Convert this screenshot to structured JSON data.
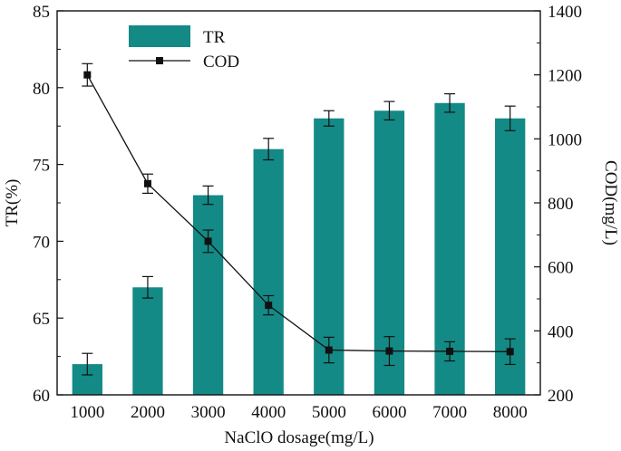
{
  "chart_data": {
    "type": "bar+line",
    "categories": [
      "1000",
      "2000",
      "3000",
      "4000",
      "5000",
      "6000",
      "7000",
      "8000"
    ],
    "xlabel": "NaClO dosage(mg/L)",
    "ylabel_left": "TR(%)",
    "ylabel_right": "COD(mg/L)",
    "ylim_left": [
      60,
      85
    ],
    "yticks_left": [
      60,
      65,
      70,
      75,
      80,
      85
    ],
    "ylim_right": [
      200,
      1400
    ],
    "yticks_right": [
      200,
      400,
      600,
      800,
      1000,
      1200,
      1400
    ],
    "legend_position": "top-left",
    "series": [
      {
        "name": "TR",
        "type": "bar",
        "axis": "left",
        "color": "#138a85",
        "values": [
          62,
          67,
          73,
          76,
          78,
          78.5,
          79,
          78
        ],
        "errors": [
          0.7,
          0.7,
          0.6,
          0.7,
          0.5,
          0.6,
          0.6,
          0.8
        ]
      },
      {
        "name": "COD",
        "type": "line",
        "axis": "right",
        "color": "#111111",
        "values": [
          1200,
          860,
          680,
          480,
          340,
          337,
          336,
          335
        ],
        "errors": [
          35,
          30,
          35,
          30,
          40,
          45,
          30,
          40
        ]
      }
    ]
  }
}
